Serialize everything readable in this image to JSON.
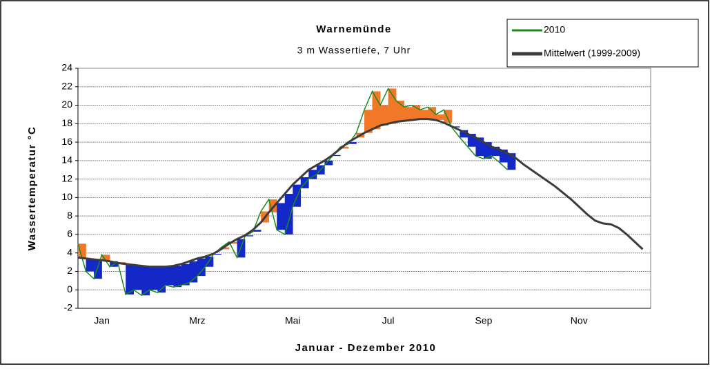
{
  "chart_data": {
    "type": "line",
    "title": "Warnemünde",
    "subtitle": "3 m Wassertiefe, 7 Uhr",
    "x_label": "Januar - Dezember 2010",
    "y_label": "Wassertemperatur °C",
    "categories": [
      null,
      null,
      null,
      "Jan",
      null,
      null,
      null,
      null,
      null,
      null,
      null,
      null,
      null,
      null,
      null,
      "Mrz",
      null,
      null,
      null,
      null,
      null,
      null,
      null,
      null,
      null,
      null,
      null,
      "Mai",
      null,
      null,
      null,
      null,
      null,
      null,
      null,
      null,
      null,
      null,
      null,
      "Jul",
      null,
      null,
      null,
      null,
      null,
      null,
      null,
      null,
      null,
      null,
      null,
      "Sep",
      null,
      null,
      null,
      null,
      null,
      null,
      null,
      null,
      null,
      null,
      null,
      "Nov",
      null,
      null,
      null,
      null,
      null,
      null,
      null,
      null
    ],
    "series": [
      {
        "name": "2010",
        "color": "#1a8a1a",
        "values": [
          5.0,
          2.0,
          1.2,
          3.8,
          2.5,
          3.0,
          -0.5,
          0.0,
          -0.6,
          0.0,
          -0.3,
          0.5,
          0.3,
          0.5,
          0.8,
          1.5,
          2.5,
          3.8,
          4.6,
          5.2,
          3.5,
          5.8,
          6.3,
          8.5,
          9.8,
          6.5,
          6.0,
          9.0,
          11.0,
          12.0,
          12.5,
          13.5,
          14.5,
          15.5,
          15.8,
          17.0,
          19.5,
          21.5,
          20.0,
          21.8,
          20.5,
          19.8,
          20.0,
          19.5,
          19.8,
          19.0,
          19.5,
          17.6,
          16.5,
          15.5,
          14.5,
          14.2,
          14.5,
          13.8,
          13.0,
          null,
          null,
          null,
          null,
          null,
          null,
          null,
          null,
          null,
          null,
          null,
          null,
          null,
          null,
          null,
          null,
          null
        ]
      },
      {
        "name": "Mittelwert (1999-2009)",
        "color": "#3c3c3c",
        "values": [
          3.5,
          3.4,
          3.3,
          3.2,
          3.1,
          2.9,
          2.8,
          2.7,
          2.6,
          2.5,
          2.5,
          2.5,
          2.6,
          2.8,
          3.1,
          3.4,
          3.6,
          3.9,
          4.4,
          5.0,
          5.5,
          5.9,
          6.5,
          7.3,
          8.4,
          9.4,
          10.4,
          11.4,
          12.2,
          13.0,
          13.5,
          14.0,
          14.6,
          15.3,
          16.0,
          16.5,
          17.0,
          17.4,
          17.8,
          18.0,
          18.2,
          18.3,
          18.4,
          18.5,
          18.5,
          18.4,
          18.1,
          17.7,
          17.3,
          16.9,
          16.5,
          16.0,
          15.5,
          15.2,
          14.8,
          14.3,
          13.6,
          13.0,
          12.4,
          11.8,
          11.2,
          10.5,
          9.8,
          9.0,
          8.2,
          7.5,
          7.2,
          7.1,
          6.7,
          6.0,
          5.2,
          4.4
        ]
      }
    ],
    "above_color": "#f07828",
    "below_color": "#1428c8",
    "ylim": [
      -2,
      24
    ],
    "yticks": [
      -2,
      0,
      2,
      4,
      6,
      8,
      10,
      12,
      14,
      16,
      18,
      20,
      22,
      24
    ],
    "grid": true,
    "legend": "top-right"
  }
}
